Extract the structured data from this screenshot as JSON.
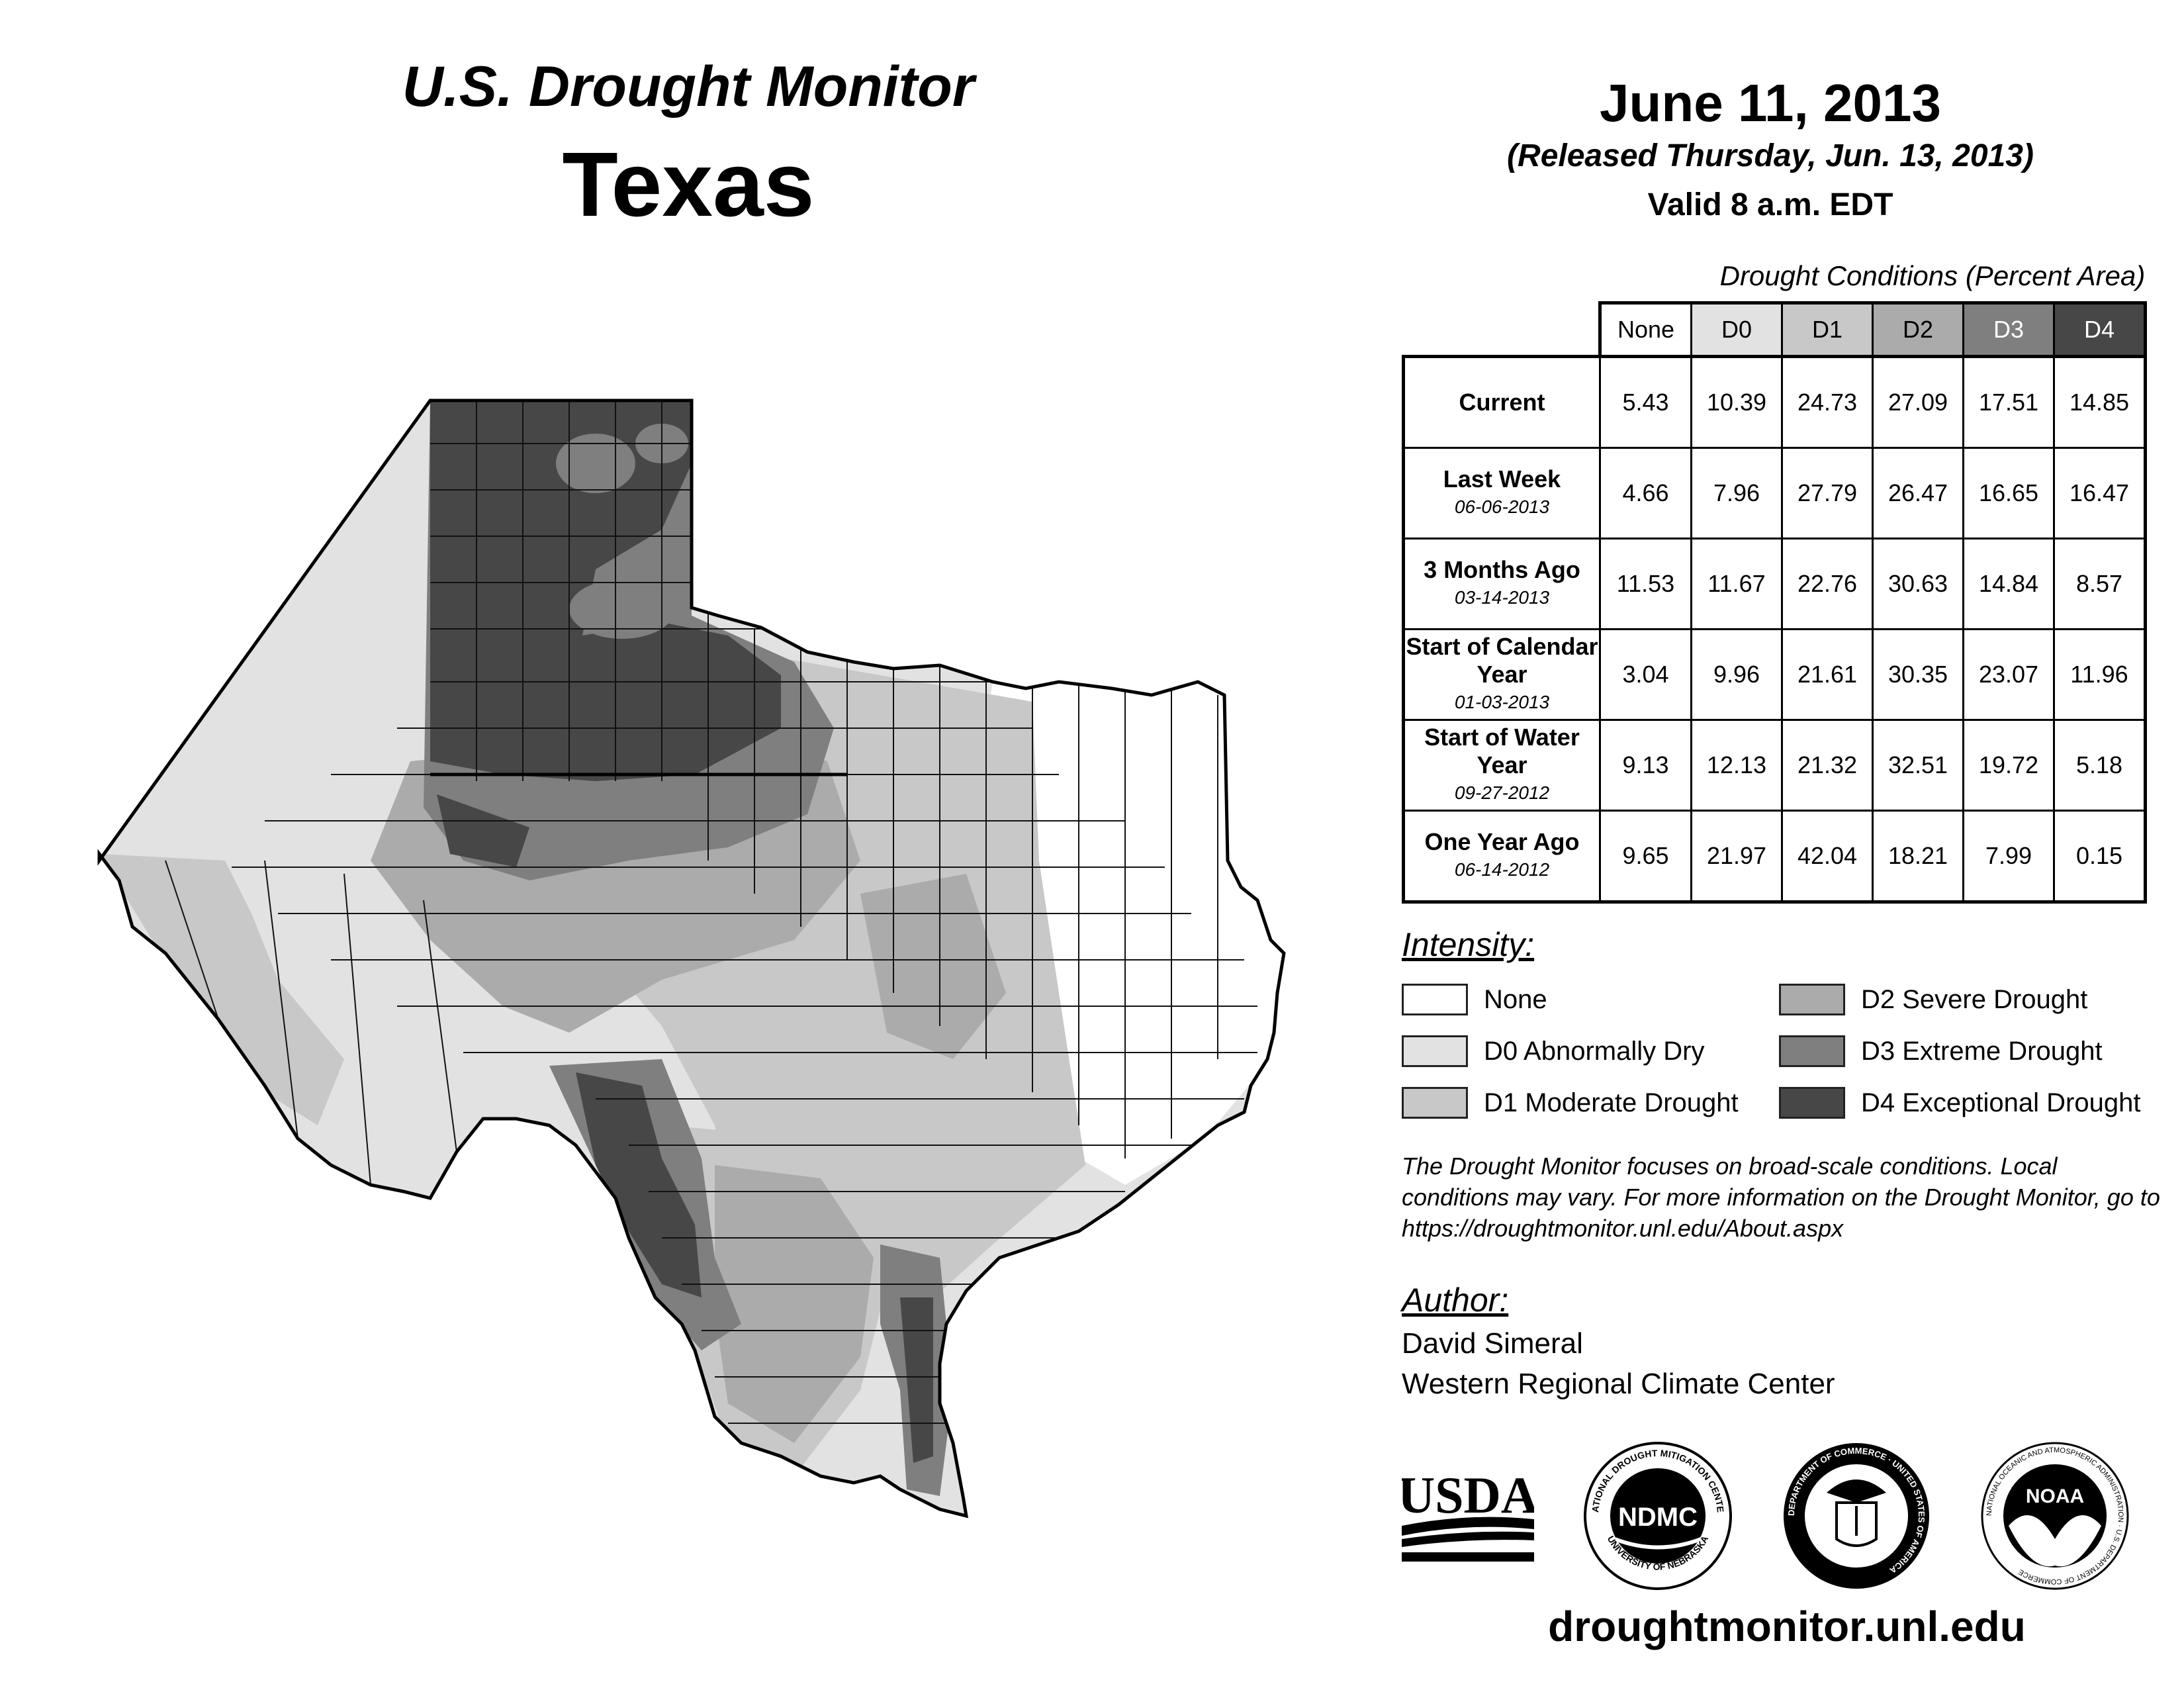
{
  "header": {
    "title": "U.S. Drought Monitor",
    "state": "Texas",
    "date": "June 11, 2013",
    "released": "(Released Thursday, Jun. 13, 2013)",
    "valid": "Valid 8 a.m. EDT"
  },
  "table": {
    "caption": "Drought Conditions (Percent Area)",
    "columns": [
      "None",
      "D0",
      "D1",
      "D2",
      "D3",
      "D4"
    ],
    "rows": [
      {
        "label": "Current",
        "date": "",
        "values": [
          "5.43",
          "10.39",
          "24.73",
          "27.09",
          "17.51",
          "14.85"
        ]
      },
      {
        "label": "Last Week",
        "date": "06-06-2013",
        "values": [
          "4.66",
          "7.96",
          "27.79",
          "26.47",
          "16.65",
          "16.47"
        ]
      },
      {
        "label": "3 Months Ago",
        "date": "03-14-2013",
        "values": [
          "11.53",
          "11.67",
          "22.76",
          "30.63",
          "14.84",
          "8.57"
        ]
      },
      {
        "label": "Start of Calendar Year",
        "date": "01-03-2013",
        "values": [
          "3.04",
          "9.96",
          "21.61",
          "30.35",
          "23.07",
          "11.96"
        ]
      },
      {
        "label": "Start of Water Year",
        "date": "09-27-2012",
        "values": [
          "9.13",
          "12.13",
          "21.32",
          "32.51",
          "19.72",
          "5.18"
        ]
      },
      {
        "label": "One Year Ago",
        "date": "06-14-2012",
        "values": [
          "9.65",
          "21.97",
          "42.04",
          "18.21",
          "7.99",
          "0.15"
        ]
      }
    ]
  },
  "legend": {
    "title": "Intensity:",
    "items": [
      {
        "label": "None",
        "color": "#ffffff"
      },
      {
        "label": "D0 Abnormally Dry",
        "color": "#e2e2e2"
      },
      {
        "label": "D1 Moderate Drought",
        "color": "#c8c8c8"
      },
      {
        "label": "D2 Severe Drought",
        "color": "#ababab"
      },
      {
        "label": "D3 Extreme Drought",
        "color": "#7f7f7f"
      },
      {
        "label": "D4 Exceptional Drought",
        "color": "#474747"
      }
    ]
  },
  "note": "The Drought Monitor focuses on broad-scale conditions. Local conditions may vary. For more information on the Drought Monitor, go to https://droughtmonitor.unl.edu/About.aspx",
  "author": {
    "title": "Author:",
    "name": "David Simeral",
    "org": "Western Regional Climate Center"
  },
  "logos": {
    "usda": "USDA",
    "ndmc": "NDMC",
    "ndmc_ring_top": "NATIONAL DROUGHT MITIGATION CENTER",
    "ndmc_ring_bottom": "UNIVERSITY OF NEBRASKA",
    "doc_ring": "DEPARTMENT OF COMMERCE · UNITED STATES OF AMERICA",
    "noaa": "NOAA",
    "noaa_ring": "NATIONAL OCEANIC AND ATMOSPHERIC ADMINISTRATION · U.S. DEPARTMENT OF COMMERCE"
  },
  "url": "droughtmonitor.unl.edu"
}
